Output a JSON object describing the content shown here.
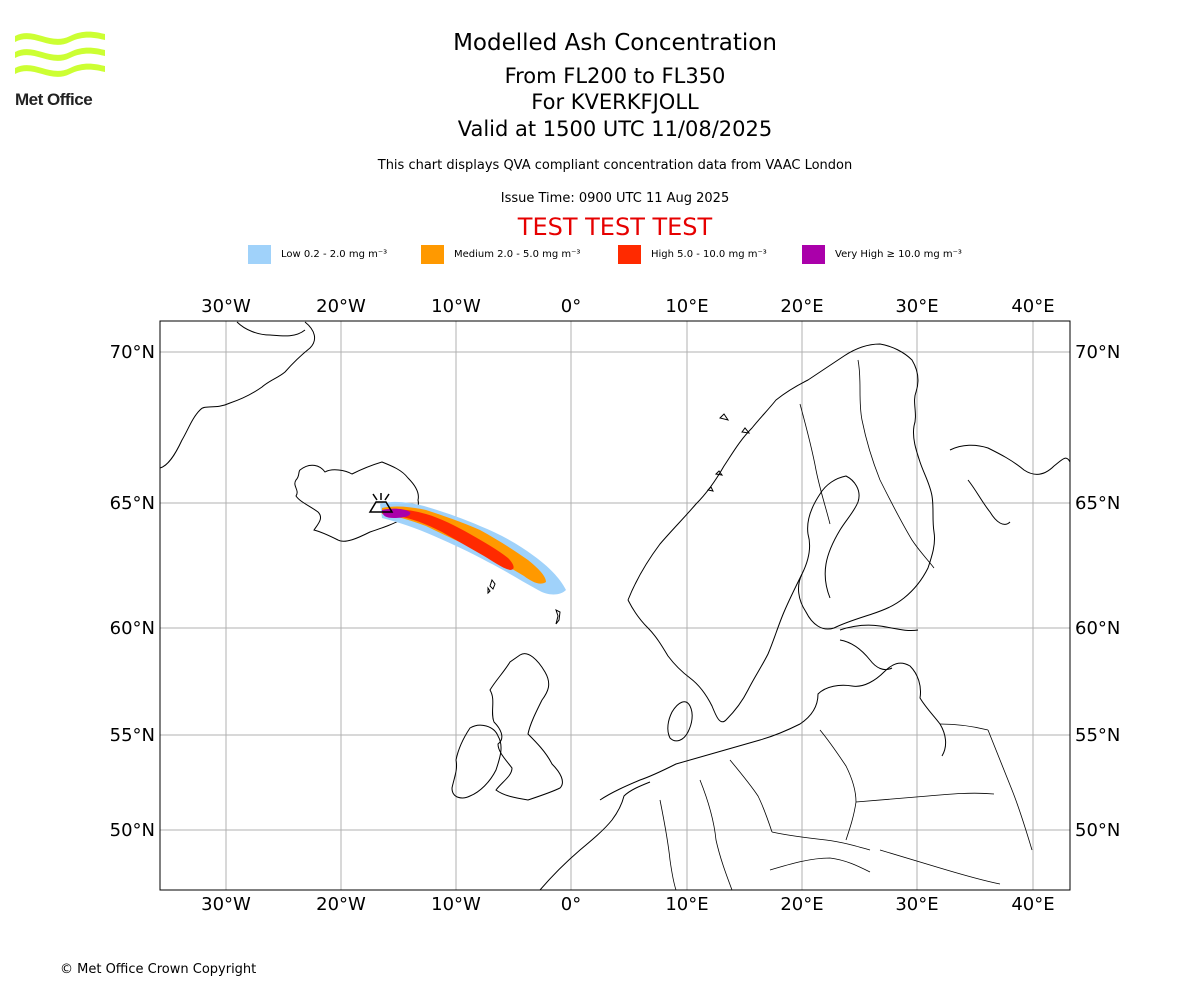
{
  "header": {
    "title": "Modelled Ash Concentration",
    "level_range": "From FL200 to FL350",
    "volcano": "For KVERKFJOLL",
    "valid_time": "Valid at 1500 UTC 11/08/2025",
    "description": "This chart displays QVA compliant concentration data from VAAC London",
    "issue_time": "Issue Time: 0900 UTC 11 Aug 2025",
    "test_banner": "TEST TEST TEST"
  },
  "logo": {
    "text": "Met Office",
    "color": "#ccff33"
  },
  "legend": [
    {
      "label": "Low 0.2 - 2.0 mg m⁻³",
      "color": "#a0d2fa"
    },
    {
      "label": "Medium 2.0 - 5.0 mg m⁻³",
      "color": "#ff9900"
    },
    {
      "label": "High 5.0 - 10.0 mg m⁻³",
      "color": "#ff2a00"
    },
    {
      "label": "Very High ≥ 10.0 mg m⁻³",
      "color": "#aa00aa"
    }
  ],
  "map": {
    "lon_ticks": [
      "30°W",
      "20°W",
      "10°W",
      "0°",
      "10°E",
      "20°E",
      "30°E",
      "40°E"
    ],
    "lat_ticks": [
      "70°N",
      "65°N",
      "60°N",
      "55°N",
      "50°N"
    ],
    "extent": {
      "lon": [
        -35.5,
        43.3
      ],
      "lat": [
        47.3,
        71.0
      ]
    }
  },
  "footer": {
    "copyright": "© Met Office Crown Copyright"
  }
}
